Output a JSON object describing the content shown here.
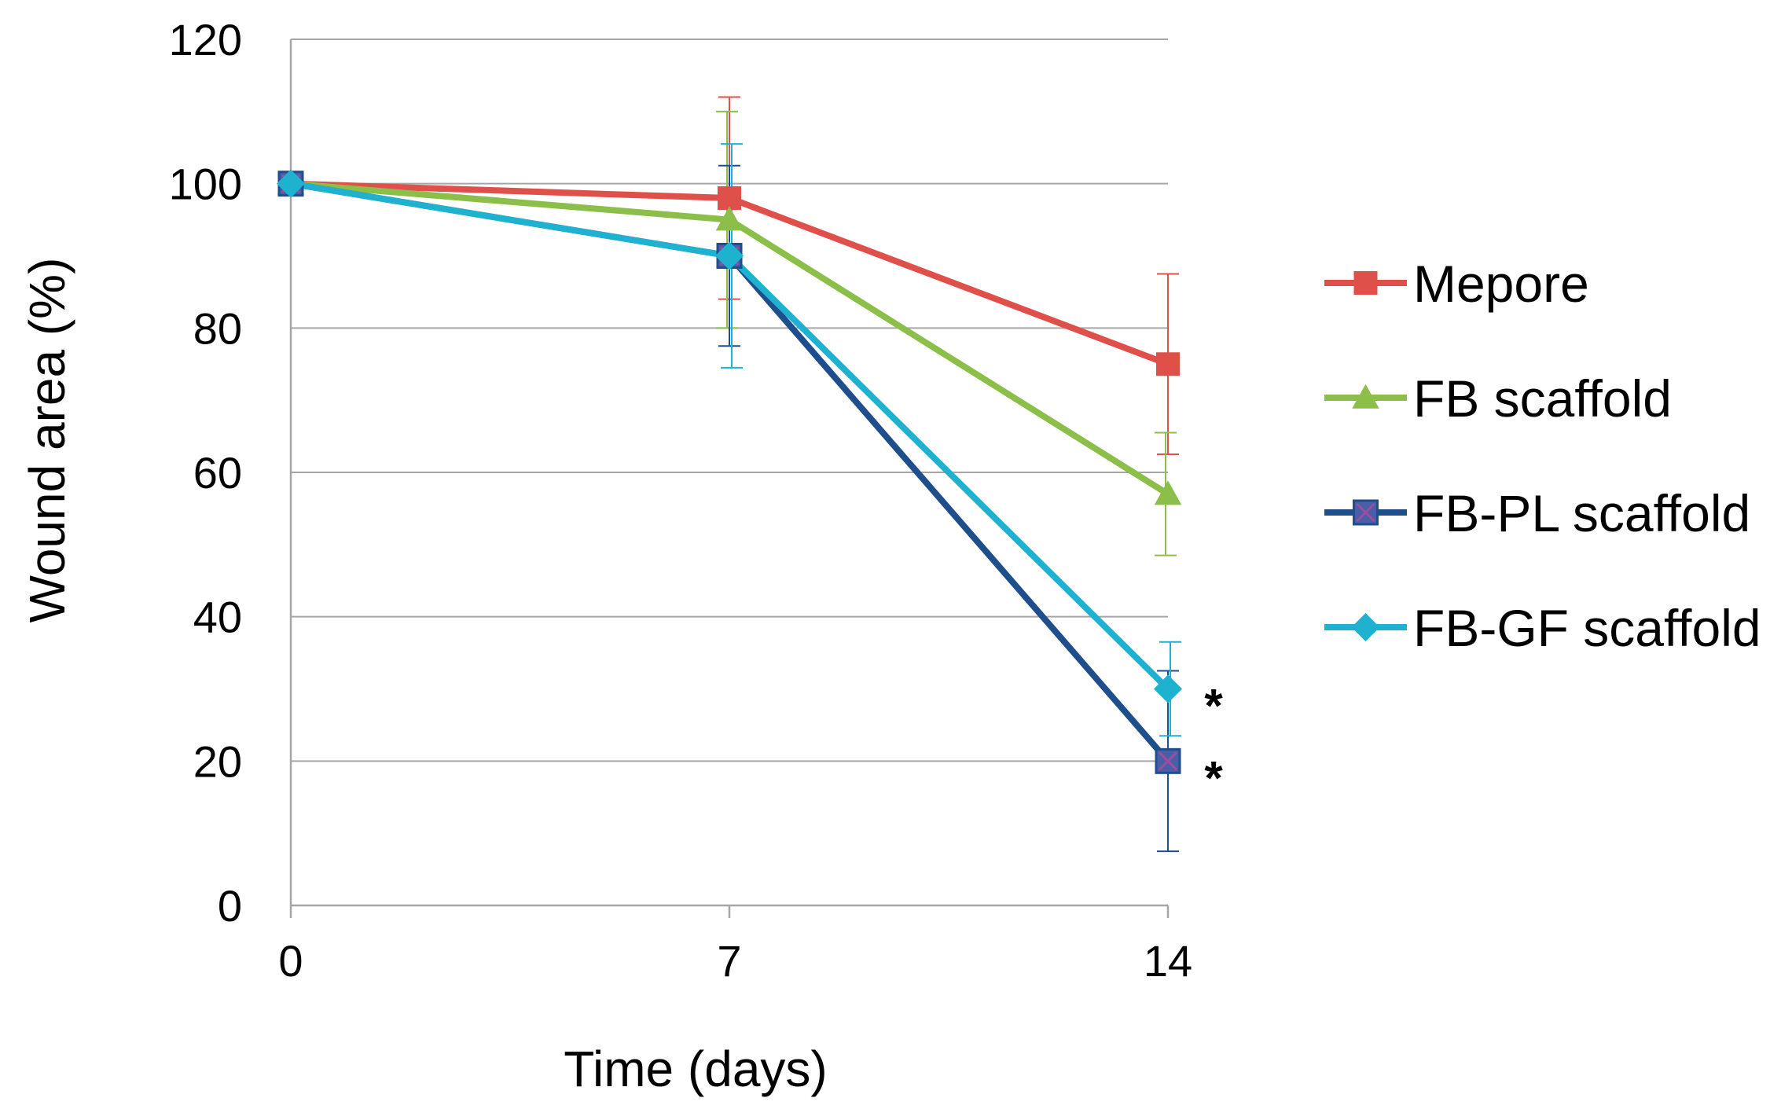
{
  "chart_data": {
    "type": "line",
    "title": "",
    "xlabel": "Time (days)",
    "ylabel": "Wound area (%)",
    "x": [
      0,
      7,
      14
    ],
    "x_tick_labels": [
      "0",
      "7",
      "14"
    ],
    "ylim": [
      0,
      120
    ],
    "y_ticks": [
      0,
      20,
      40,
      60,
      80,
      100,
      120
    ],
    "y_tick_labels": [
      "0",
      "20",
      "40",
      "60",
      "80",
      "100",
      "120"
    ],
    "grid": true,
    "legend_position": "right",
    "series": [
      {
        "name": "Mepore",
        "color": "#E0504A",
        "marker": "square",
        "values": [
          100,
          98,
          75
        ],
        "errors": [
          0,
          14,
          12.5
        ]
      },
      {
        "name": "FB scaffold",
        "color": "#8CBF4A",
        "marker": "triangle",
        "values": [
          100,
          95,
          57
        ],
        "errors": [
          0,
          15,
          8.5
        ]
      },
      {
        "name": "FB-PL scaffold",
        "color": "#1F4E8C",
        "marker": "x-square",
        "values": [
          100,
          90,
          20
        ],
        "errors": [
          0,
          12.5,
          12.5
        ]
      },
      {
        "name": "FB-GF scaffold",
        "color": "#1FB2D0",
        "marker": "diamond",
        "values": [
          100,
          90,
          30
        ],
        "errors": [
          0,
          15.5,
          6.5
        ]
      }
    ],
    "annotations": [
      {
        "text": "*",
        "x": 14,
        "y": 30
      },
      {
        "text": "*",
        "x": 14,
        "y": 20
      }
    ]
  }
}
